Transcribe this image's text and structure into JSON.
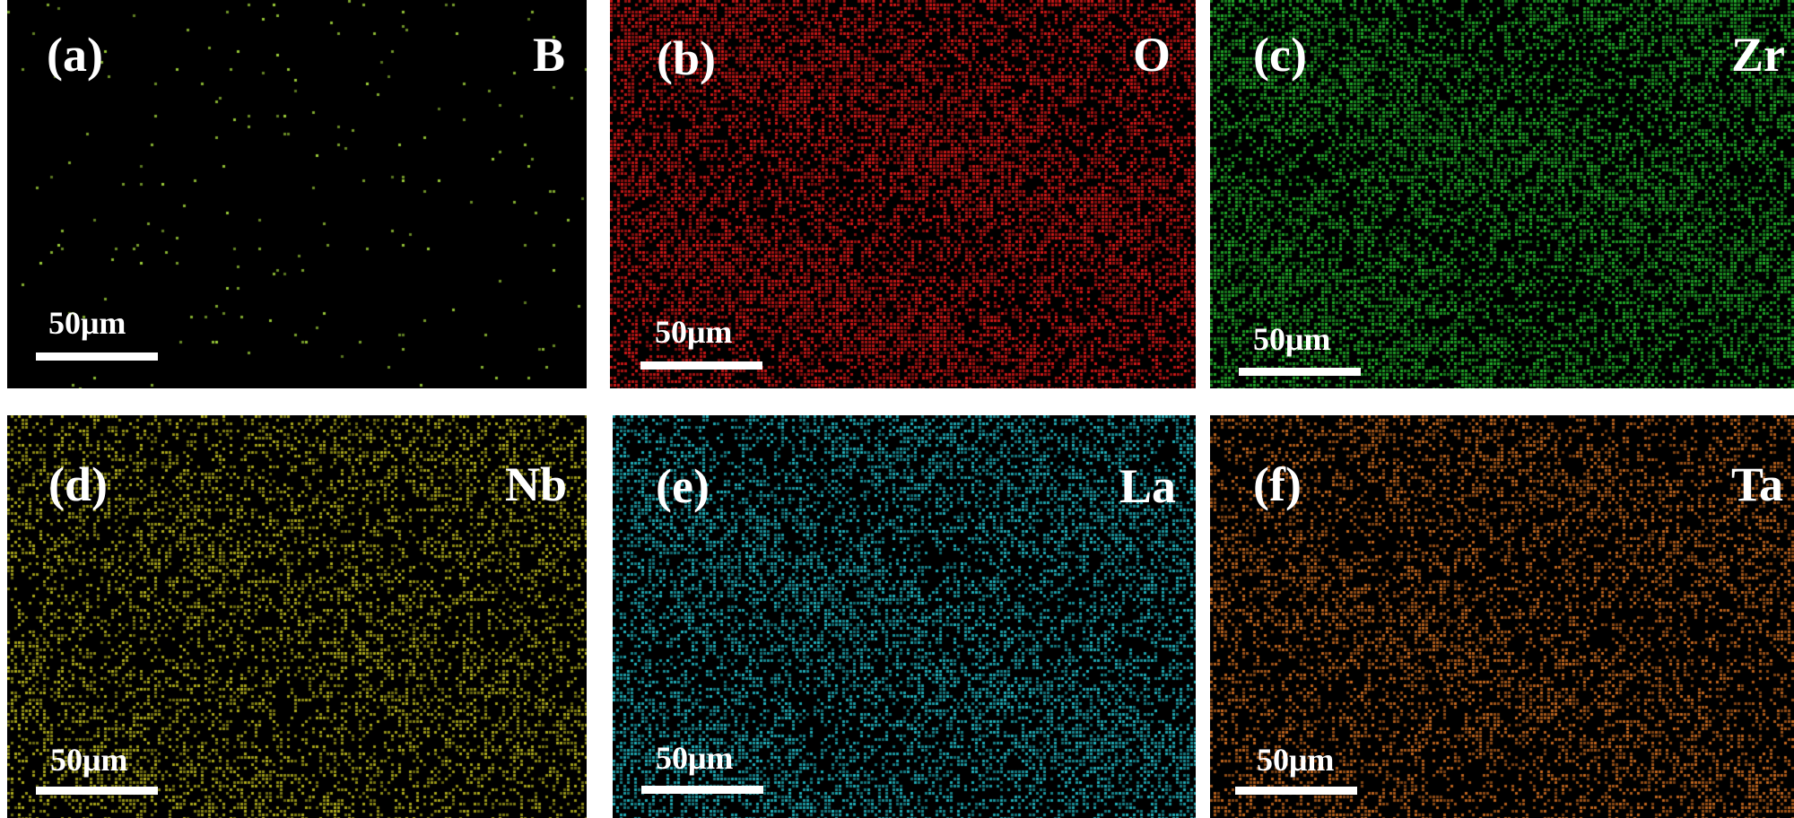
{
  "panels": [
    {
      "label": "(a)",
      "element": "B",
      "scale": "50μm",
      "color": "#9fd23a",
      "density": 0.012
    },
    {
      "label": "(b)",
      "element": "O",
      "scale": "50μm",
      "color": "#d81818",
      "density": 0.62
    },
    {
      "label": "(c)",
      "element": "Zr",
      "scale": "50μm",
      "color": "#22b02a",
      "density": 0.58
    },
    {
      "label": "(d)",
      "element": "Nb",
      "scale": "50μm",
      "color": "#b3b01e",
      "density": 0.38
    },
    {
      "label": "(e)",
      "element": "La",
      "scale": "50μm",
      "color": "#22b4bf",
      "density": 0.5
    },
    {
      "label": "(f)",
      "element": "Ta",
      "scale": "50μm",
      "color": "#c86a20",
      "density": 0.4
    }
  ]
}
